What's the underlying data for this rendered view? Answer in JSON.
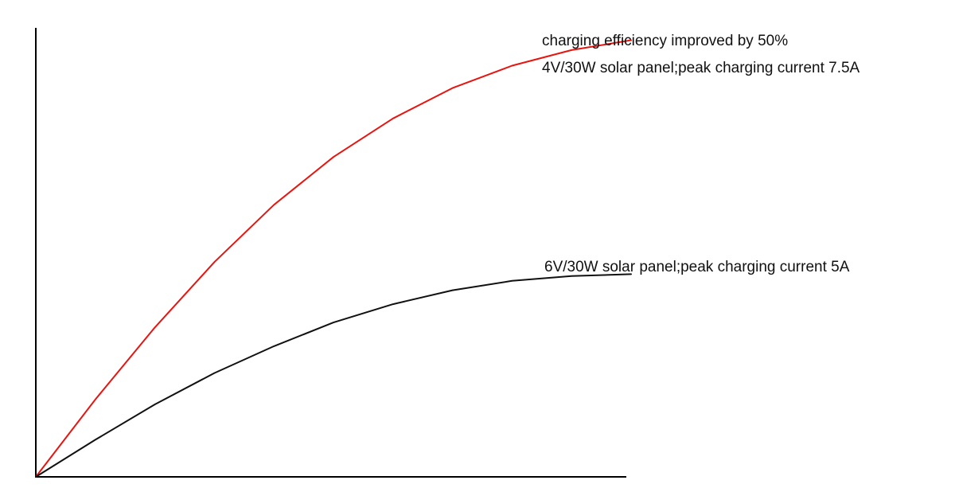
{
  "chart_data": {
    "type": "line",
    "title": "",
    "xlabel": "",
    "ylabel": "",
    "grid": false,
    "legend": "none",
    "xlim": [
      0,
      100
    ],
    "ylim": [
      0,
      100
    ],
    "series": [
      {
        "name": "4V/30W solar panel;peak charging current 7.5A",
        "color": "#e8140f",
        "x": [
          0,
          10,
          20,
          30,
          40,
          50,
          60,
          70,
          80,
          90,
          100
        ],
        "y": [
          0,
          17.3,
          33.4,
          48.0,
          60.8,
          71.5,
          80.1,
          86.9,
          91.9,
          95.4,
          97.6
        ]
      },
      {
        "name": "6V/30W solar panel;peak charging current 5A",
        "color": "#111111",
        "x": [
          0,
          10,
          20,
          30,
          40,
          50,
          60,
          70,
          80,
          90,
          100
        ],
        "y": [
          0,
          8.3,
          16.2,
          23.2,
          29.2,
          34.5,
          38.6,
          41.7,
          43.8,
          44.9,
          45.3
        ]
      }
    ],
    "annotations": [
      "charging efficiency improved by 50%",
      "4V/30W solar panel;peak charging current 7.5A",
      "6V/30W solar panel;peak charging current 5A"
    ]
  }
}
